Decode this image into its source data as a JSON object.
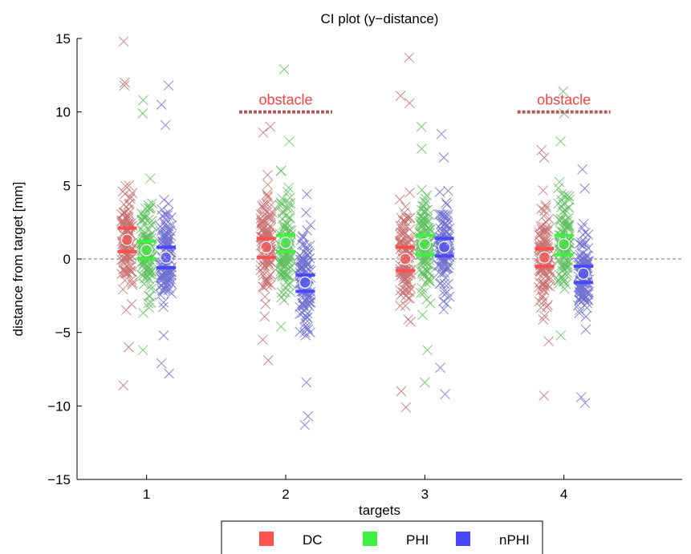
{
  "chart_data": {
    "type": "scatter",
    "title": "CI plot (y−distance)",
    "xlabel": "targets",
    "ylabel": "distance from target [mm]",
    "xlim": [
      0.5,
      4.85
    ],
    "ylim": [
      -15,
      15
    ],
    "x_ticks": [
      1,
      2,
      3,
      4
    ],
    "y_ticks": [
      -15,
      -10,
      -5,
      0,
      5,
      10,
      15
    ],
    "y_tick_labels": [
      "−15",
      "−10",
      "−5",
      "0",
      "5",
      "10",
      "15"
    ],
    "grid": false,
    "legend": {
      "position": "bottom-center"
    },
    "zero_line": {
      "y": 0,
      "style": "dashed"
    },
    "annotations": [
      {
        "text": "obstacle",
        "target": 2,
        "y": 10
      },
      {
        "text": "obstacle",
        "target": 4,
        "y": 10
      }
    ],
    "series": [
      {
        "name": "DC",
        "color": "#ff5050",
        "point_color": "#c87070",
        "offset": -0.14,
        "means": [
          1.3,
          0.8,
          0.0,
          0.1
        ],
        "ci_upper": [
          2.1,
          1.4,
          0.8,
          0.7
        ],
        "ci_lower": [
          0.5,
          0.1,
          -0.8,
          -0.5
        ],
        "extremes": [
          [
            14.8,
            12.0,
            11.8,
            -8.6,
            -6.0
          ],
          [
            9.0,
            8.6,
            -6.9,
            -5.5
          ],
          [
            13.7,
            11.1,
            10.6,
            -10.1,
            -9.0
          ],
          [
            7.4,
            6.9,
            -9.3,
            -5.6
          ]
        ]
      },
      {
        "name": "PHI",
        "color": "#40f040",
        "point_color": "#60c060",
        "offset": 0.0,
        "means": [
          0.6,
          1.1,
          1.0,
          1.0
        ],
        "ci_upper": [
          1.2,
          1.6,
          1.6,
          1.6
        ],
        "ci_lower": [
          0.0,
          0.5,
          0.3,
          0.3
        ],
        "extremes": [
          [
            10.8,
            9.9,
            -6.2
          ],
          [
            12.9,
            8.0,
            6.0,
            -4.6
          ],
          [
            9.0,
            7.5,
            -8.4,
            -6.2
          ],
          [
            11.4,
            9.9,
            8.0,
            -5.2
          ]
        ]
      },
      {
        "name": "nPHI",
        "color": "#4848ff",
        "point_color": "#7070d0",
        "offset": 0.14,
        "means": [
          0.1,
          -1.6,
          0.8,
          -1.0
        ],
        "ci_upper": [
          0.8,
          -1.1,
          1.4,
          -0.5
        ],
        "ci_lower": [
          -0.6,
          -2.2,
          0.2,
          -1.6
        ],
        "extremes": [
          [
            11.8,
            10.5,
            9.1,
            -7.8,
            -7.1
          ],
          [
            4.4,
            -10.7,
            -11.3,
            -8.4
          ],
          [
            8.5,
            6.9,
            -9.2,
            -7.4
          ],
          [
            6.1,
            4.8,
            -9.8,
            -9.4
          ]
        ]
      }
    ]
  }
}
